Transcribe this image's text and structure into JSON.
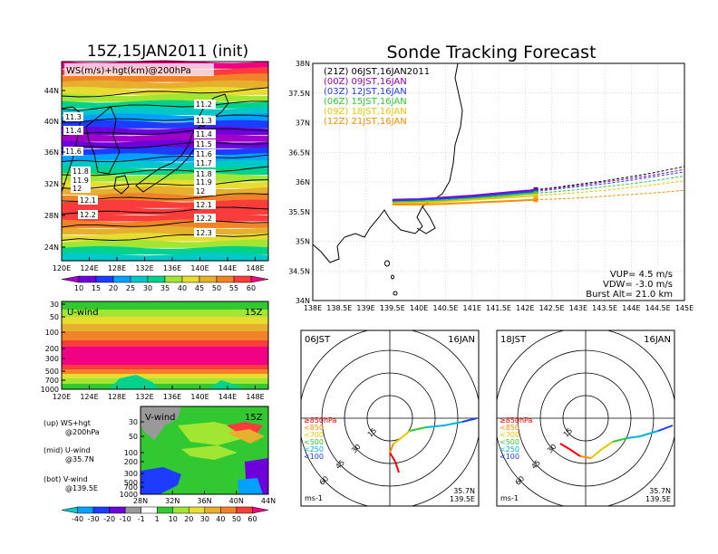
{
  "left": {
    "title": "15Z,15JAN2011 (init)",
    "map_label": "WS(m/s)+hgt(km)@200hPa",
    "map_lat_ticks": [
      "44N",
      "40N",
      "36N",
      "32N",
      "28N",
      "24N"
    ],
    "lon_ticks": [
      "120E",
      "124E",
      "128E",
      "132E",
      "136E",
      "140E",
      "144E",
      "148E"
    ],
    "contour_labels_left": [
      "11.3",
      "11.4",
      "11.6",
      "11.8",
      "11.9",
      "12",
      "12.1",
      "12.2"
    ],
    "contour_labels_right": [
      "11.2",
      "11.3",
      "11.4",
      "11.5",
      "11.6",
      "11.7",
      "11.8",
      "11.9",
      "12",
      "12.1",
      "12.2",
      "12.3"
    ],
    "ws_colorbar": [
      "10",
      "15",
      "20",
      "25",
      "30",
      "35",
      "40",
      "45",
      "50",
      "55",
      "60"
    ],
    "ws_colors": [
      "#a000c8",
      "#6e00dc",
      "#1e3cff",
      "#00a0ff",
      "#00c8c8",
      "#00d28c",
      "#a0e632",
      "#e6dc32",
      "#e6af2d",
      "#f08228",
      "#fa3c3c",
      "#f00082"
    ],
    "uwind_label": "U-wind",
    "uwind_time": "15Z",
    "p_ticks": [
      "30",
      "50",
      "100",
      "200",
      "300",
      "500",
      "700",
      "1000"
    ],
    "vwind_label": "V-wind",
    "vwind_time": "15Z",
    "vwind_lat_ticks": [
      "28N",
      "32N",
      "36N",
      "40N",
      "44N"
    ],
    "legend": {
      "up": "(up) WS+hgt",
      "up2": "@200hPa",
      "mid": "(mid) U-wind",
      "mid2": "@35.7N",
      "bot": "(bot) V-wind",
      "bot2": "@139.5E"
    },
    "uv_colorbar": [
      "-40",
      "-30",
      "-20",
      "-10",
      "-1",
      "1",
      "10",
      "20",
      "30",
      "40",
      "50",
      "60"
    ]
  },
  "right": {
    "title": "Sonde Tracking Forecast",
    "lat_ticks": [
      "38N",
      "37.5N",
      "37N",
      "36.5N",
      "36N",
      "35.5N",
      "35N",
      "34.5N",
      "34N"
    ],
    "lon_ticks": [
      "138E",
      "138.5E",
      "139E",
      "139.5E",
      "140E",
      "140.5E",
      "141E",
      "141.5E",
      "142E",
      "142.5E",
      "143E",
      "143.5E",
      "144E",
      "144.5E",
      "145E"
    ],
    "info": {
      "vup": "VUP= 4.5 m/s",
      "vdw": "VDW= -3.0 m/s",
      "burst": "Burst Alt= 21.0 km"
    }
  },
  "hodo_left": {
    "time": "06JST",
    "date": "16JAN",
    "rings": [
      "15",
      "30",
      "45",
      "60"
    ],
    "units": "ms-1",
    "lat": "35.7N",
    "lon": "139.5E"
  },
  "hodo_right": {
    "time": "18JST",
    "date": "16JAN",
    "rings": [
      "15",
      "30",
      "45",
      "60"
    ],
    "units": "ms-1",
    "lat": "35.7N",
    "lon": "139.5E"
  },
  "pressure_legend": [
    {
      "label": "≥850hPa",
      "color": "#ff0000"
    },
    {
      "label": "<850",
      "color": "#ff8c00"
    },
    {
      "label": "<700",
      "color": "#e6c800"
    },
    {
      "label": "<500",
      "color": "#32c832"
    },
    {
      "label": "<250",
      "color": "#00b4dc"
    },
    {
      "label": "<100",
      "color": "#1e3cff"
    }
  ],
  "chart_data": {
    "type": "line",
    "title": "Sonde Tracking Forecast",
    "xlabel": "",
    "ylabel": "",
    "xlim": [
      138,
      145
    ],
    "ylim": [
      34,
      38
    ],
    "legend_placement": "top-left",
    "series": [
      {
        "name": "(21Z) 06JST,16JAN2011",
        "color": "#000000",
        "x": [
          139.5,
          140.0,
          140.5,
          141.0,
          141.5,
          142.0,
          142.2,
          142.5,
          143.0,
          143.5,
          144.0,
          144.5,
          145.0
        ],
        "y": [
          35.68,
          35.7,
          35.73,
          35.76,
          35.8,
          35.84,
          35.87,
          35.9,
          35.96,
          36.02,
          36.09,
          36.17,
          36.26
        ]
      },
      {
        "name": "(00Z) 09JST,16JAN",
        "color": "#9600b4",
        "x": [
          139.5,
          140.0,
          140.5,
          141.0,
          141.5,
          142.0,
          142.2,
          142.5,
          143.0,
          143.5,
          144.0,
          144.5,
          145.0
        ],
        "y": [
          35.7,
          35.71,
          35.74,
          35.77,
          35.81,
          35.85,
          35.86,
          35.89,
          35.94,
          36.0,
          36.06,
          36.13,
          36.21
        ]
      },
      {
        "name": "(03Z) 12JST,16JAN",
        "color": "#1e3cff",
        "x": [
          139.5,
          140.0,
          140.5,
          141.0,
          141.5,
          142.0,
          142.2,
          142.5,
          143.0,
          143.5,
          144.0,
          144.5,
          145.0
        ],
        "y": [
          35.68,
          35.7,
          35.72,
          35.75,
          35.79,
          35.83,
          35.84,
          35.87,
          35.92,
          35.97,
          36.03,
          36.1,
          36.17
        ]
      },
      {
        "name": "(06Z) 15JST,16JAN",
        "color": "#32c832",
        "x": [
          139.5,
          140.0,
          140.5,
          141.0,
          141.5,
          142.0,
          142.2,
          142.5,
          143.0,
          143.5,
          144.0,
          144.5,
          145.0
        ],
        "y": [
          35.66,
          35.67,
          35.69,
          35.72,
          35.76,
          35.8,
          35.81,
          35.83,
          35.87,
          35.92,
          35.97,
          36.03,
          36.1
        ]
      },
      {
        "name": "(09Z) 18JST,16JAN",
        "color": "#e6c800",
        "x": [
          139.5,
          140.0,
          140.5,
          141.0,
          141.5,
          142.0,
          142.2,
          142.5,
          143.0,
          143.5,
          144.0,
          144.5,
          145.0
        ],
        "y": [
          35.64,
          35.65,
          35.67,
          35.7,
          35.73,
          35.76,
          35.77,
          35.79,
          35.82,
          35.86,
          35.91,
          35.96,
          36.02
        ]
      },
      {
        "name": "(12Z) 21JST,16JAN",
        "color": "#ff8c00",
        "x": [
          139.5,
          140.0,
          140.5,
          141.0,
          141.5,
          142.0,
          142.2,
          142.5,
          143.0,
          143.5,
          144.0,
          144.5,
          145.0
        ],
        "y": [
          35.62,
          35.62,
          35.63,
          35.65,
          35.67,
          35.69,
          35.7,
          35.71,
          35.73,
          35.76,
          35.79,
          35.82,
          35.86
        ]
      }
    ]
  }
}
